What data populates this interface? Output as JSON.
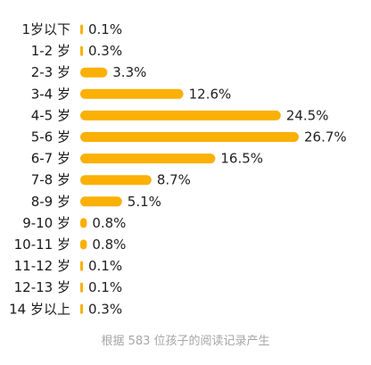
{
  "chart_data": {
    "type": "bar",
    "orientation": "horizontal",
    "categories": [
      "1岁以下",
      "1-2 岁",
      "2-3 岁",
      "3-4 岁",
      "4-5 岁",
      "5-6 岁",
      "6-7 岁",
      "7-8 岁",
      "8-9 岁",
      "9-10 岁",
      "10-11 岁",
      "11-12 岁",
      "12-13 岁",
      "14 岁以上"
    ],
    "values": [
      0.1,
      0.3,
      3.3,
      12.6,
      24.5,
      26.7,
      16.5,
      8.7,
      5.1,
      0.8,
      0.8,
      0.1,
      0.1,
      0.3
    ],
    "value_labels": [
      "0.1%",
      "0.3%",
      "3.3%",
      "12.6%",
      "24.5%",
      "26.7%",
      "16.5%",
      "8.7%",
      "5.1%",
      "0.8%",
      "0.8%",
      "0.1%",
      "0.1%",
      "0.3%"
    ],
    "unit": "%",
    "caption": "根据 583 位孩子的阅读记录产生",
    "bar_color": "#FAB005",
    "axes_shown": false,
    "grid": false
  }
}
